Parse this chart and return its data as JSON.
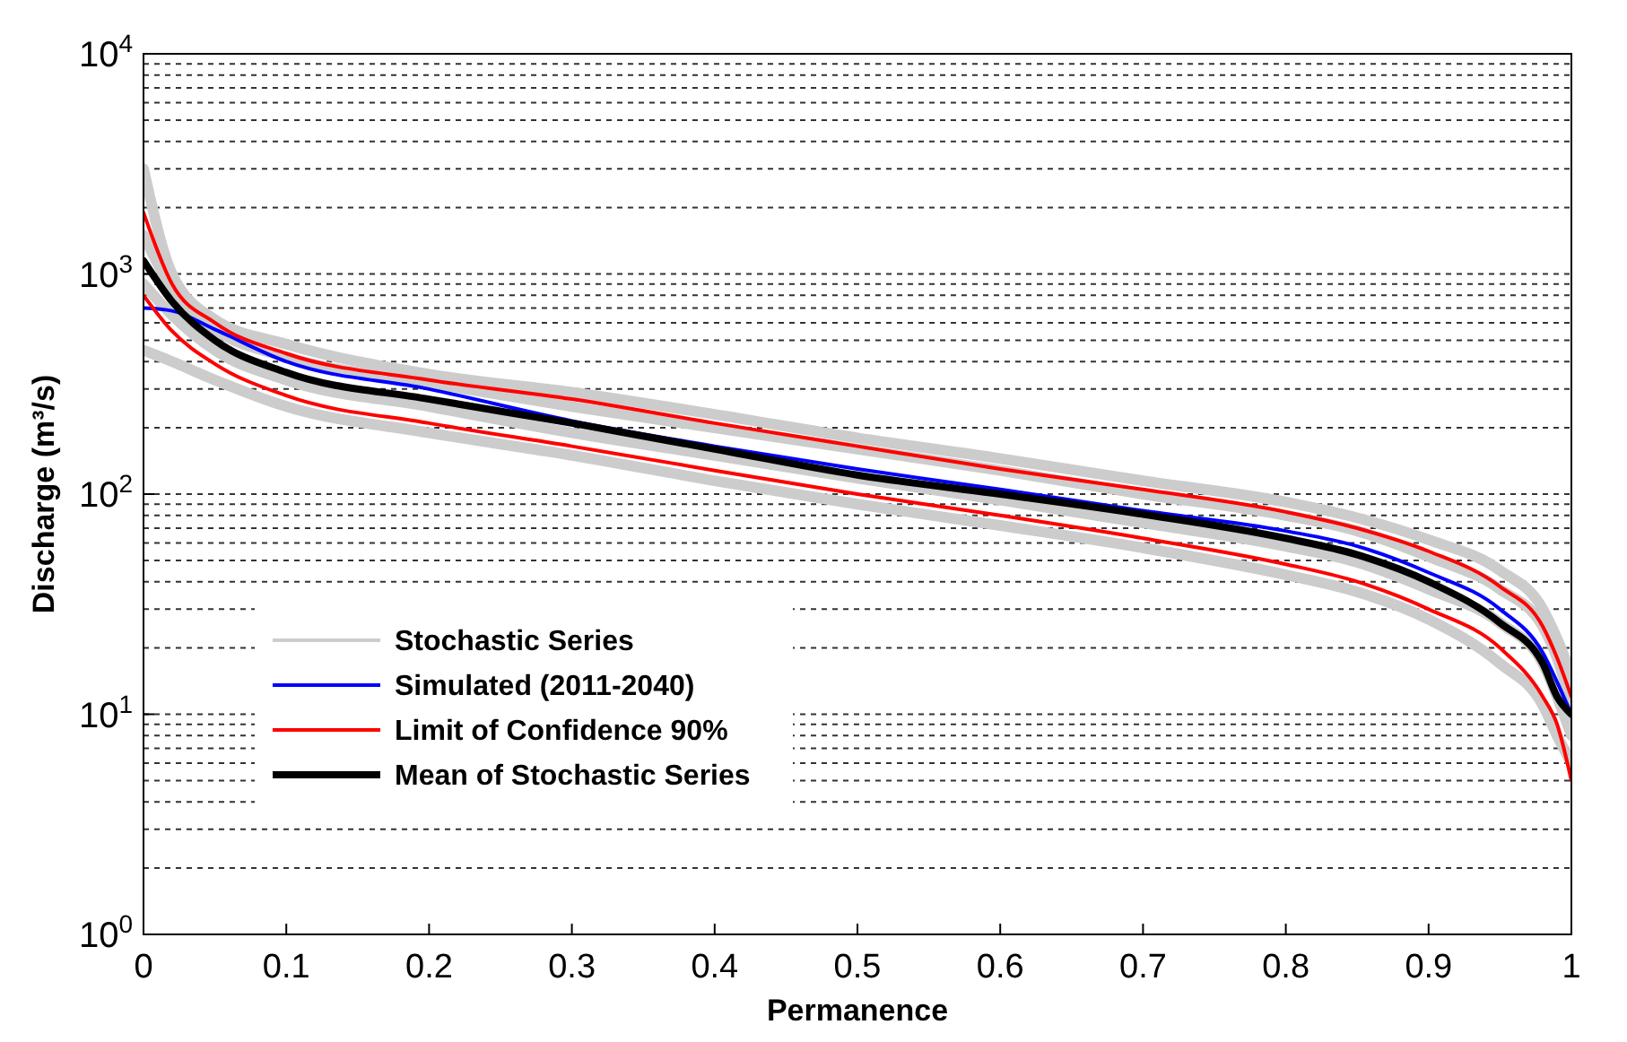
{
  "chart_data": {
    "type": "line",
    "xlabel": "Permanence",
    "ylabel": "Discharge (m³/s)",
    "log": "y",
    "grid": "y",
    "legend": "bottom left",
    "xlim": [
      0,
      1
    ],
    "ylim": [
      1,
      10000
    ],
    "xticks": [
      0,
      0.1,
      0.2,
      0.3,
      0.4,
      0.5,
      0.6,
      0.7,
      0.8,
      0.9,
      1
    ],
    "yticks": [
      {
        "value": 1,
        "label": "10$^{0}$"
      },
      {
        "value": 2,
        "label": null
      },
      {
        "value": 3,
        "label": null
      },
      {
        "value": 4,
        "label": null
      },
      {
        "value": 5,
        "label": null
      },
      {
        "value": 6,
        "label": null
      },
      {
        "value": 7,
        "label": null
      },
      {
        "value": 8,
        "label": null
      },
      {
        "value": 9,
        "label": null
      },
      {
        "value": 10,
        "label": "10$^{1}$"
      },
      {
        "value": 20,
        "label": null
      },
      {
        "value": 30,
        "label": null
      },
      {
        "value": 40,
        "label": null
      },
      {
        "value": 50,
        "label": null
      },
      {
        "value": 60,
        "label": null
      },
      {
        "value": 70,
        "label": null
      },
      {
        "value": 80,
        "label": null
      },
      {
        "value": 90,
        "label": null
      },
      {
        "value": 100,
        "label": "10$^{2}$"
      },
      {
        "value": 200,
        "label": null
      },
      {
        "value": 300,
        "label": null
      },
      {
        "value": 400,
        "label": null
      },
      {
        "value": 500,
        "label": null
      },
      {
        "value": 600,
        "label": null
      },
      {
        "value": 700,
        "label": null
      },
      {
        "value": 800,
        "label": null
      },
      {
        "value": 900,
        "label": null
      },
      {
        "value": 1000,
        "label": "10$^{3}$"
      },
      {
        "value": 2000,
        "label": null
      },
      {
        "value": 3000,
        "label": null
      },
      {
        "value": 4000,
        "label": null
      },
      {
        "value": 5000,
        "label": null
      },
      {
        "value": 6000,
        "label": null
      },
      {
        "value": 7000,
        "label": null
      },
      {
        "value": 8000,
        "label": null
      },
      {
        "value": 9000,
        "label": null
      },
      {
        "value": 10000,
        "label": "10$^{4}$"
      }
    ],
    "x": [
      0,
      0.02,
      0.05,
      0.1,
      0.2,
      0.3,
      0.4,
      0.5,
      0.6,
      0.7,
      0.8,
      0.85,
      0.9,
      0.95,
      0.98,
      0.99,
      1
    ],
    "series": [
      {
        "name": "Stochastic Series",
        "color": "#cccccc",
        "values": [
          3000,
          1000,
          620,
          480,
          350,
          290,
          230,
          180,
          145,
          115,
          92,
          78,
          62,
          45,
          30,
          22,
          15
        ]
      },
      {
        "color": "#cccccc",
        "values": [
          1500,
          850,
          560,
          420,
          320,
          250,
          200,
          160,
          128,
          100,
          80,
          68,
          52,
          37,
          25,
          18,
          11
        ]
      },
      {
        "color": "#cccccc",
        "values": [
          900,
          650,
          450,
          330,
          250,
          190,
          150,
          118,
          94,
          74,
          58,
          49,
          37,
          26,
          17,
          12,
          8
        ]
      },
      {
        "color": "#cccccc",
        "values": [
          450,
          400,
          330,
          250,
          190,
          150,
          115,
          90,
          72,
          57,
          43,
          36,
          27,
          17,
          11,
          8,
          6
        ]
      },
      {
        "name": "Simulated (2011-2040)",
        "color": "#0000ff",
        "values": [
          700,
          680,
          560,
          400,
          300,
          215,
          165,
          130,
          105,
          84,
          68,
          58,
          44,
          30,
          19,
          14,
          10
        ]
      },
      {
        "name": "Limit of Confidence 90%",
        "color": "#ff0000",
        "values": [
          1900,
          900,
          600,
          435,
          330,
          270,
          210,
          165,
          130,
          105,
          83,
          70,
          55,
          38,
          25,
          18,
          12
        ]
      },
      {
        "color": "#ff0000",
        "values": [
          800,
          550,
          390,
          280,
          210,
          165,
          128,
          100,
          80,
          63,
          48,
          40,
          30,
          20,
          12,
          9,
          5
        ]
      },
      {
        "name": "Mean of Stochastic Series",
        "color": "#000000",
        "values": [
          1150,
          750,
          500,
          357,
          270,
          210,
          160,
          122,
          100,
          81,
          63,
          53,
          40,
          26,
          17,
          12,
          10
        ]
      }
    ]
  }
}
